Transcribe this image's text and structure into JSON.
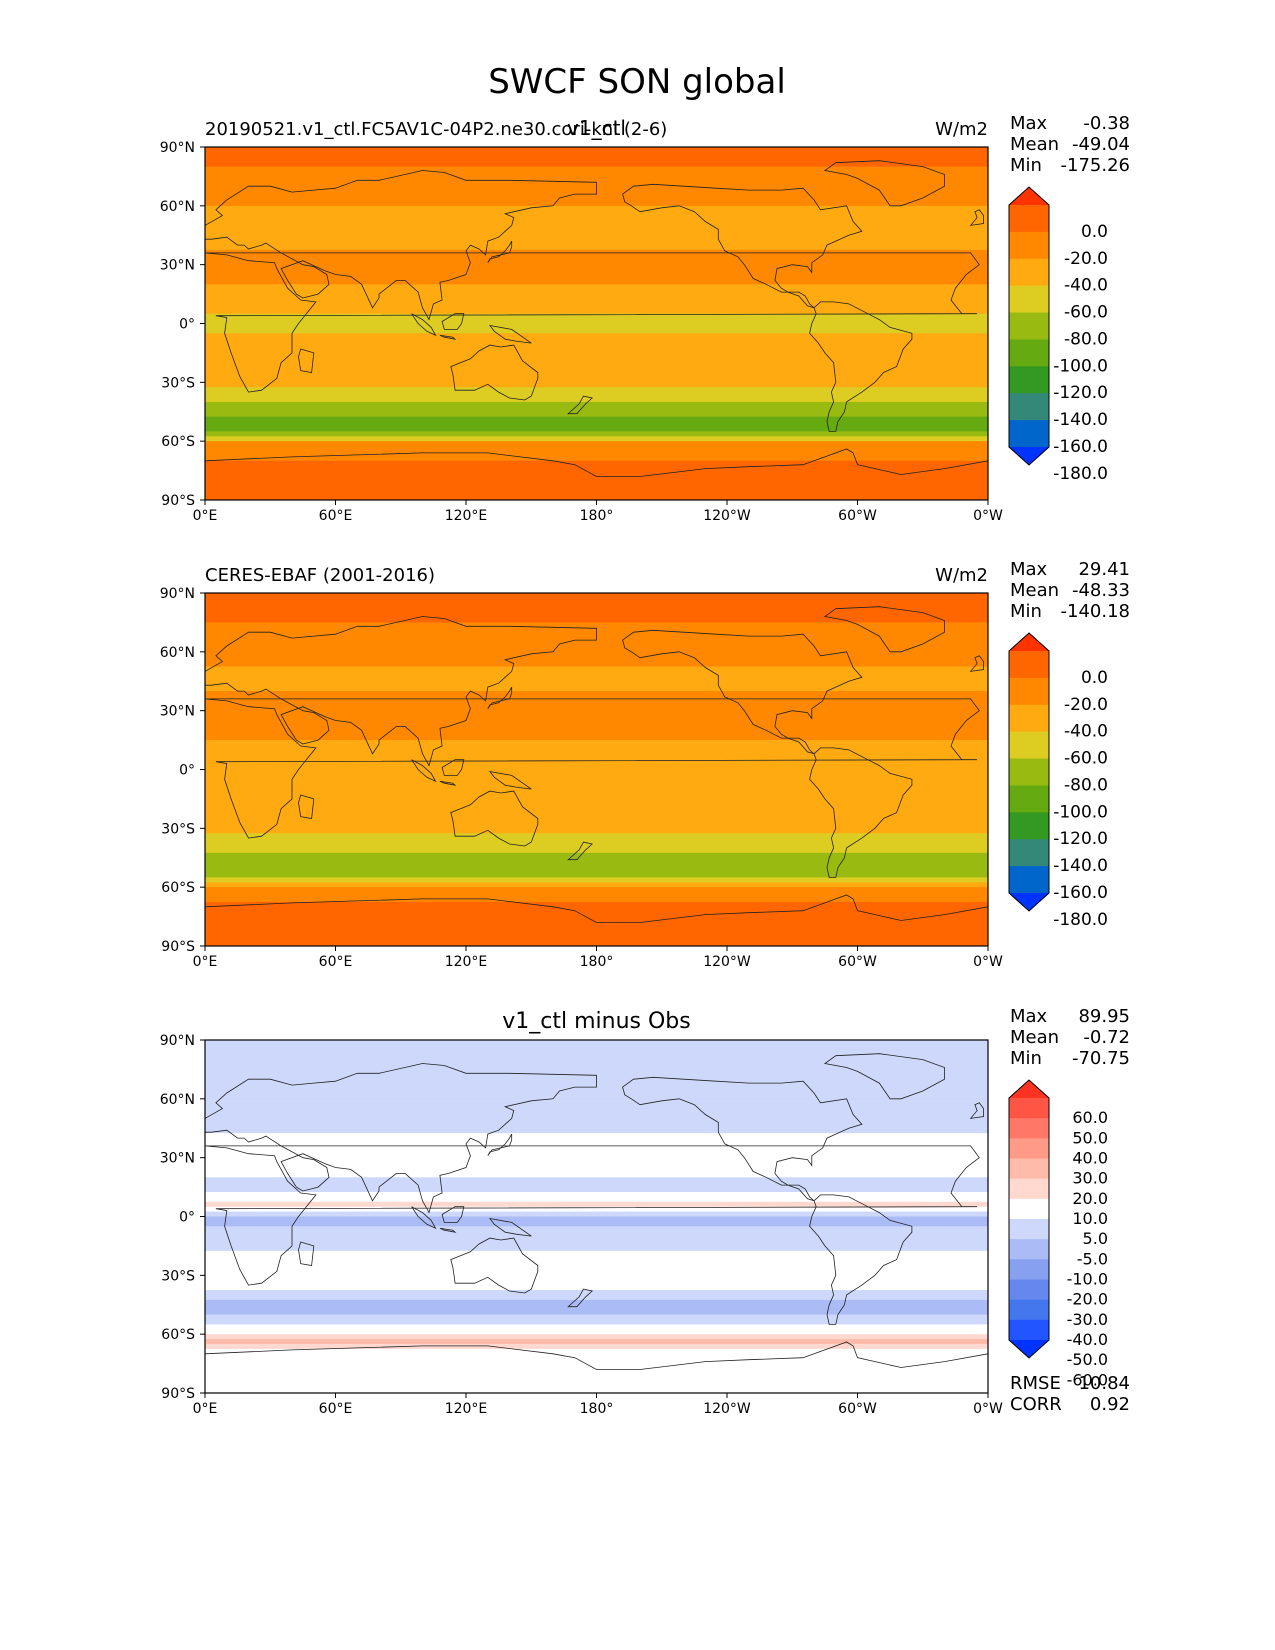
{
  "figure_title": "SWCF SON global",
  "colors": {
    "abs_cmap": [
      "#0033ff",
      "#0066cc",
      "#338877",
      "#339922",
      "#66aa11",
      "#99bb11",
      "#ddcc22",
      "#ffaa11",
      "#ff8800",
      "#ff6600",
      "#ff3300"
    ],
    "diff_cmap": [
      "#0033ff",
      "#2255ff",
      "#4477ee",
      "#6688ee",
      "#88a0f0",
      "#aabbf5",
      "#cdd8fa",
      "#ffffff",
      "#ffd8d0",
      "#ffbbaa",
      "#ff9988",
      "#ff7766",
      "#ff5544",
      "#ff3322"
    ]
  },
  "chart_data": [
    {
      "type": "heatmap",
      "name": "model",
      "left_title": "20190521.v1_ctl.FC5AV1C-04P2.ne30.cori-knl (2-6)",
      "center_title": "v1_ctl",
      "units": "W/m2",
      "stats": [
        {
          "label": "Max",
          "value": "-0.38"
        },
        {
          "label": "Mean",
          "value": "-49.04"
        },
        {
          "label": "Min",
          "value": "-175.26"
        }
      ],
      "colorbar_ticks": [
        "0.0",
        "-20.0",
        "-40.0",
        "-60.0",
        "-80.0",
        "-100.0",
        "-120.0",
        "-140.0",
        "-160.0",
        "-180.0"
      ],
      "x_ticks": [
        "0°E",
        "60°E",
        "120°E",
        "180°",
        "120°W",
        "60°W",
        "0°W"
      ],
      "y_ticks": [
        "90°N",
        "60°N",
        "30°N",
        "0°",
        "30°S",
        "60°S",
        "90°S"
      ],
      "xlim": [
        0,
        360
      ],
      "ylim": [
        -90,
        90
      ],
      "zonal_profile": [
        {
          "lat": 90,
          "value": -15
        },
        {
          "lat": 75,
          "value": -22
        },
        {
          "lat": 60,
          "value": -40
        },
        {
          "lat": 45,
          "value": -50
        },
        {
          "lat": 30,
          "value": -30
        },
        {
          "lat": 15,
          "value": -45
        },
        {
          "lat": 0,
          "value": -65
        },
        {
          "lat": -15,
          "value": -50
        },
        {
          "lat": -30,
          "value": -55
        },
        {
          "lat": -45,
          "value": -95
        },
        {
          "lat": -55,
          "value": -110
        },
        {
          "lat": -62,
          "value": -30
        },
        {
          "lat": -75,
          "value": -15
        },
        {
          "lat": -90,
          "value": -12
        }
      ]
    },
    {
      "type": "heatmap",
      "name": "obs",
      "left_title": "CERES-EBAF (2001-2016)",
      "units": "W/m2",
      "stats": [
        {
          "label": "Max",
          "value": "29.41"
        },
        {
          "label": "Mean",
          "value": "-48.33"
        },
        {
          "label": "Min",
          "value": "-140.18"
        }
      ],
      "colorbar_ticks": [
        "0.0",
        "-20.0",
        "-40.0",
        "-60.0",
        "-80.0",
        "-100.0",
        "-120.0",
        "-140.0",
        "-160.0",
        "-180.0"
      ],
      "x_ticks": [
        "0°E",
        "60°E",
        "120°E",
        "180°",
        "120°W",
        "60°W",
        "0°W"
      ],
      "y_ticks": [
        "90°N",
        "60°N",
        "30°N",
        "0°",
        "30°S",
        "60°S",
        "90°S"
      ],
      "xlim": [
        0,
        360
      ],
      "ylim": [
        -90,
        90
      ],
      "zonal_profile": [
        {
          "lat": 90,
          "value": -15
        },
        {
          "lat": 75,
          "value": -20
        },
        {
          "lat": 60,
          "value": -35
        },
        {
          "lat": 45,
          "value": -45
        },
        {
          "lat": 30,
          "value": -30
        },
        {
          "lat": 15,
          "value": -40
        },
        {
          "lat": 0,
          "value": -50
        },
        {
          "lat": -15,
          "value": -45
        },
        {
          "lat": -30,
          "value": -55
        },
        {
          "lat": -45,
          "value": -85
        },
        {
          "lat": -55,
          "value": -90
        },
        {
          "lat": -62,
          "value": -30
        },
        {
          "lat": -75,
          "value": -8
        },
        {
          "lat": -90,
          "value": -10
        }
      ]
    },
    {
      "type": "heatmap",
      "name": "diff",
      "center_title": "v1_ctl minus Obs",
      "stats": [
        {
          "label": "Max",
          "value": "89.95"
        },
        {
          "label": "Mean",
          "value": "-0.72"
        },
        {
          "label": "Min",
          "value": "-70.75"
        }
      ],
      "colorbar_ticks": [
        "60.0",
        "50.0",
        "40.0",
        "30.0",
        "20.0",
        "10.0",
        "5.0",
        "-5.0",
        "-10.0",
        "-20.0",
        "-30.0",
        "-40.0",
        "-50.0",
        "-60.0"
      ],
      "metrics": [
        {
          "label": "RMSE",
          "value": "10.84"
        },
        {
          "label": "CORR",
          "value": "0.92"
        }
      ],
      "x_ticks": [
        "0°E",
        "60°E",
        "120°E",
        "180°",
        "120°W",
        "60°W",
        "0°W"
      ],
      "y_ticks": [
        "90°N",
        "60°N",
        "30°N",
        "0°",
        "30°S",
        "60°S",
        "90°S"
      ],
      "xlim": [
        0,
        360
      ],
      "ylim": [
        -90,
        90
      ],
      "zonal_profile": [
        {
          "lat": 80,
          "value": -8
        },
        {
          "lat": 60,
          "value": -8
        },
        {
          "lat": 45,
          "value": -6
        },
        {
          "lat": 30,
          "value": 3
        },
        {
          "lat": 15,
          "value": -8
        },
        {
          "lat": 5,
          "value": 8
        },
        {
          "lat": 0,
          "value": -12
        },
        {
          "lat": -15,
          "value": -6
        },
        {
          "lat": -30,
          "value": 3
        },
        {
          "lat": -45,
          "value": -12
        },
        {
          "lat": -55,
          "value": -8
        },
        {
          "lat": -62,
          "value": 12
        },
        {
          "lat": -70,
          "value": 3
        },
        {
          "lat": -90,
          "value": 0
        }
      ]
    }
  ]
}
